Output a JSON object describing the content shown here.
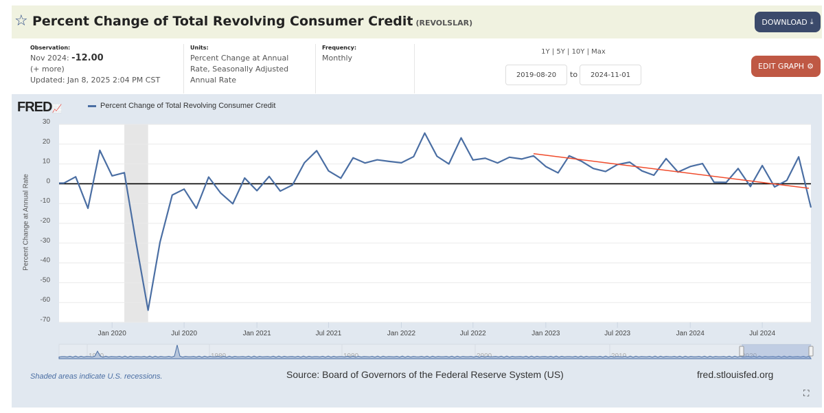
{
  "header": {
    "title": "Percent Change of Total Revolving Consumer Credit",
    "series_id": "(REVOLSLAR)",
    "download_label": "DOWNLOAD",
    "star_icon": "star-outline"
  },
  "observation": {
    "label": "Observation:",
    "date": "Nov 2024:",
    "value": "-12.00",
    "more": "(+ more)",
    "updated": "Updated: Jan 8, 2025 2:04 PM CST"
  },
  "units": {
    "label": "Units:",
    "value": "Percent Change at Annual Rate, Seasonally Adjusted Annual Rate"
  },
  "frequency": {
    "label": "Frequency:",
    "value": "Monthly"
  },
  "range": {
    "presets": "1Y | 5Y | 10Y | Max",
    "start": "2019-08-20",
    "to": "to",
    "end": "2024-11-01"
  },
  "edit_label": "EDIT GRAPH",
  "footer": {
    "recession_note": "Shaded areas indicate U.S. recessions.",
    "source": "Source: Board of Governors of the Federal Reserve System (US)",
    "site": "fred.stlouisfed.org"
  },
  "colors": {
    "series": "#4a6ea3",
    "trend": "#f04a2a",
    "recession": "#e6e6e6",
    "panel": "#e1e8f0"
  },
  "chart_data": {
    "type": "line",
    "logo": "FRED",
    "legend": "Percent Change of Total Revolving Consumer Credit",
    "ylabel": "Percent Change at Annual Rate",
    "ylim": [
      -70,
      30
    ],
    "yticks": [
      30,
      20,
      10,
      0,
      -10,
      -20,
      -30,
      -40,
      -50,
      -60,
      -70
    ],
    "xlim": [
      "2019-08-20",
      "2024-11-01"
    ],
    "xticks": [
      {
        "date": "2020-01-01",
        "label": "Jan 2020"
      },
      {
        "date": "2020-07-01",
        "label": "Jul 2020"
      },
      {
        "date": "2021-01-01",
        "label": "Jan 2021"
      },
      {
        "date": "2021-07-01",
        "label": "Jul 2021"
      },
      {
        "date": "2022-01-01",
        "label": "Jan 2022"
      },
      {
        "date": "2022-07-01",
        "label": "Jul 2022"
      },
      {
        "date": "2023-01-01",
        "label": "Jan 2023"
      },
      {
        "date": "2023-07-01",
        "label": "Jul 2023"
      },
      {
        "date": "2024-01-01",
        "label": "Jan 2024"
      },
      {
        "date": "2024-07-01",
        "label": "Jul 2024"
      }
    ],
    "start_month": "2019-09",
    "values": [
      0.3,
      3.5,
      -12.4,
      16.9,
      4.0,
      5.6,
      -29,
      -63.9,
      -29.6,
      -5.7,
      -2.7,
      -12.4,
      3.4,
      -4.6,
      -10.1,
      2.9,
      -3.5,
      3.7,
      -3.7,
      -0.6,
      10.6,
      16.7,
      6.5,
      2.8,
      13.1,
      10.5,
      12.1,
      11.3,
      10.6,
      13.7,
      25.6,
      13.9,
      10.0,
      23.2,
      12.0,
      12.9,
      10.5,
      13.4,
      12.5,
      14.1,
      8.7,
      5.5,
      14.1,
      11.4,
      7.7,
      6.2,
      9.7,
      10.9,
      6.5,
      4.3,
      12.7,
      5.9,
      8.7,
      10.2,
      0.8,
      0.7,
      7.7,
      -1.4,
      9.2,
      -1.6,
      1.7,
      13.6,
      -12.0
    ],
    "zero_line": 0,
    "trend": {
      "start": {
        "date": "2022-12-01",
        "value": 15.2
      },
      "end": {
        "date": "2024-11-01",
        "value": -2.3
      }
    },
    "recessions": [
      {
        "start": "2020-02-01",
        "end": "2020-04-01"
      }
    ],
    "grid": true,
    "navigator": {
      "labels": [
        "1970",
        "1980",
        "1990",
        "2000",
        "2010",
        "2020"
      ],
      "selected": [
        "2019-08-20",
        "2024-11-01"
      ]
    }
  }
}
